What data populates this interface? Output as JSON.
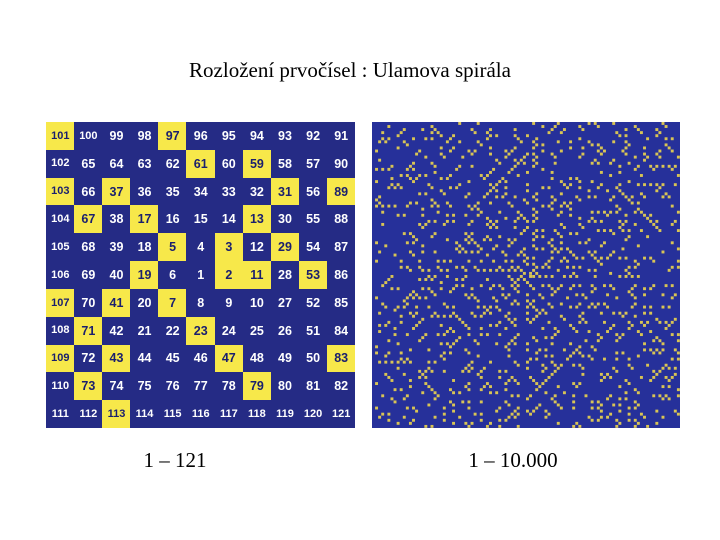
{
  "title": "Rozložení prvočísel : Ulamova spirála",
  "caption_left": "1 – 121",
  "caption_right": "1 – 10.000",
  "colors": {
    "prime": "#f7e84a",
    "composite": "#252b85",
    "dense_bg": "#26309a",
    "dense_dot": "#d8c455"
  },
  "spiral_grid": [
    [
      101,
      100,
      99,
      98,
      97,
      96,
      95,
      94,
      93,
      92,
      91
    ],
    [
      102,
      65,
      64,
      63,
      62,
      61,
      60,
      59,
      58,
      57,
      90
    ],
    [
      103,
      66,
      37,
      36,
      35,
      34,
      33,
      32,
      31,
      56,
      89
    ],
    [
      104,
      67,
      38,
      17,
      16,
      15,
      14,
      13,
      30,
      55,
      88
    ],
    [
      105,
      68,
      39,
      18,
      5,
      4,
      3,
      12,
      29,
      54,
      87
    ],
    [
      106,
      69,
      40,
      19,
      6,
      1,
      2,
      11,
      28,
      53,
      86
    ],
    [
      107,
      70,
      41,
      20,
      7,
      8,
      9,
      10,
      27,
      52,
      85
    ],
    [
      108,
      71,
      42,
      21,
      22,
      23,
      24,
      25,
      26,
      51,
      84
    ],
    [
      109,
      72,
      43,
      44,
      45,
      46,
      47,
      48,
      49,
      50,
      83
    ],
    [
      110,
      73,
      74,
      75,
      76,
      77,
      78,
      79,
      80,
      81,
      82
    ],
    [
      111,
      112,
      113,
      114,
      115,
      116,
      117,
      118,
      119,
      120,
      121
    ]
  ],
  "dense_spiral_max": 10000
}
